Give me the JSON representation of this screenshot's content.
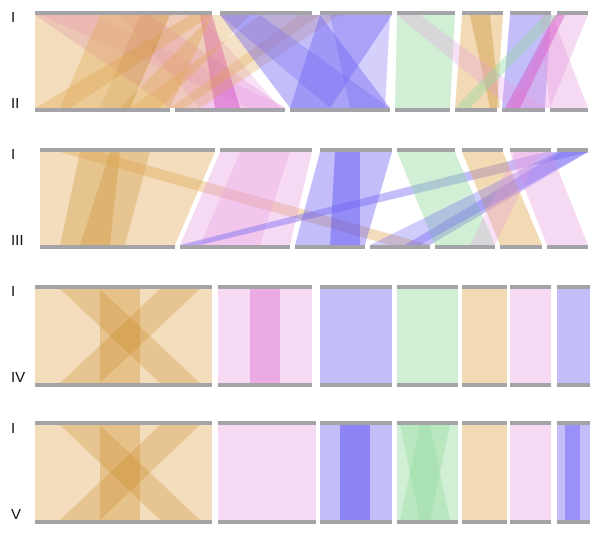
{
  "colors": {
    "orange": "#dfa64f",
    "pink": "#e79ce0",
    "blue": "#6f63f2",
    "green": "#8fd99a",
    "bar": "#a4a4a8",
    "strongPink": "#d654c6",
    "strongBlue": "#4b3ef0",
    "strongOrange": "#c98a24"
  },
  "panels": [
    {
      "top_label": "I",
      "bottom_label": "II"
    },
    {
      "top_label": "I",
      "bottom_label": "III"
    },
    {
      "top_label": "I",
      "bottom_label": "IV"
    },
    {
      "top_label": "I",
      "bottom_label": "V"
    }
  ]
}
